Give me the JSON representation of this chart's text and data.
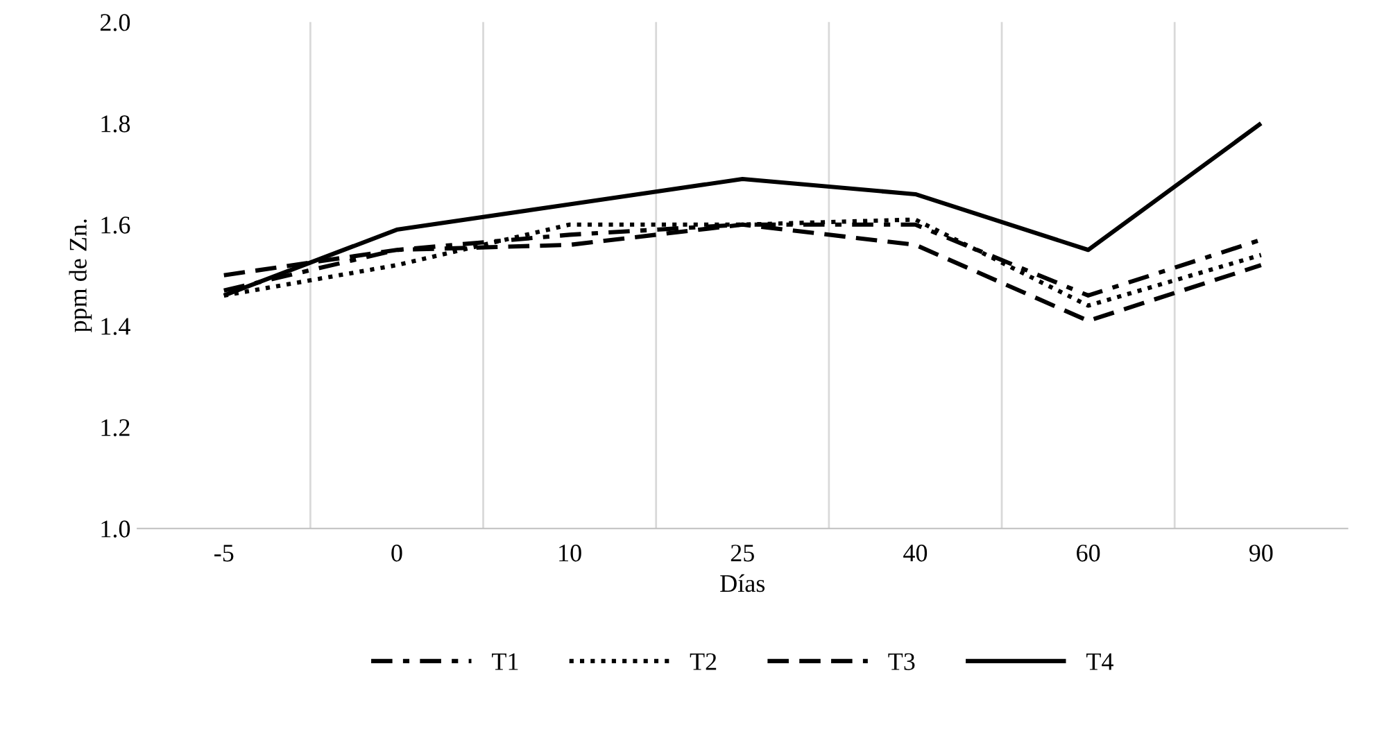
{
  "chart_data": {
    "type": "line",
    "xlabel": "Días",
    "ylabel": "ppm de Zn.",
    "categories": [
      "-5",
      "0",
      "10",
      "25",
      "40",
      "60",
      "90"
    ],
    "series": [
      {
        "name": "T1",
        "color": "#000000",
        "line_style": "dashdot",
        "values": [
          1.47,
          1.55,
          1.58,
          1.6,
          1.6,
          1.46,
          1.57
        ]
      },
      {
        "name": "T2",
        "color": "#000000",
        "line_style": "dotted",
        "values": [
          1.46,
          1.52,
          1.6,
          1.6,
          1.61,
          1.44,
          1.54
        ]
      },
      {
        "name": "T3",
        "color": "#000000",
        "line_style": "dashed",
        "values": [
          1.5,
          1.55,
          1.56,
          1.6,
          1.56,
          1.41,
          1.52
        ]
      },
      {
        "name": "T4",
        "color": "#000000",
        "line_style": "solid",
        "values": [
          1.46,
          1.59,
          1.64,
          1.69,
          1.66,
          1.55,
          1.8
        ]
      }
    ],
    "ylim": [
      1.0,
      2.0
    ],
    "yticks": [
      {
        "value": 1.0,
        "label": "1.0"
      },
      {
        "value": 1.2,
        "label": "1.2"
      },
      {
        "value": 1.4,
        "label": "1.4"
      },
      {
        "value": 1.6,
        "label": "1.6"
      },
      {
        "value": 1.8,
        "label": "1.8"
      },
      {
        "value": 2.0,
        "label": "2.0"
      }
    ],
    "grid": "x",
    "legend": "bottom",
    "marker": "none"
  }
}
